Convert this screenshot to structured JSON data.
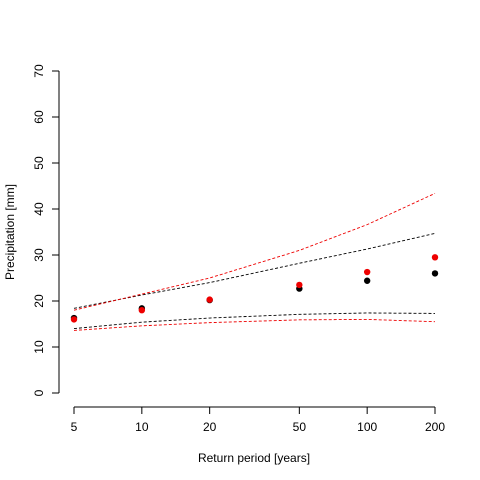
{
  "chart_data": {
    "type": "scatter",
    "title": "",
    "xlabel": "Return period [years]",
    "ylabel": "Precipitation [mm]",
    "x_scale": "log",
    "xlim": [
      5,
      200
    ],
    "ylim": [
      0,
      70
    ],
    "x_ticks": [
      5,
      10,
      20,
      50,
      100,
      200
    ],
    "x_tick_labels": [
      "5",
      "10",
      "20",
      "50",
      "100",
      "200"
    ],
    "y_ticks": [
      0,
      10,
      20,
      30,
      40,
      50,
      60,
      70
    ],
    "y_tick_labels": [
      "0",
      "10",
      "20",
      "30",
      "40",
      "50",
      "60",
      "70"
    ],
    "grid": false,
    "x": [
      5,
      10,
      20,
      50,
      100,
      200
    ],
    "series": [
      {
        "name": "black estimates",
        "kind": "points",
        "color": "#000000",
        "values": [
          16.3,
          18.4,
          20.2,
          22.7,
          24.4,
          26.0
        ]
      },
      {
        "name": "red estimates",
        "kind": "points",
        "color": "#ee0000",
        "values": [
          16.0,
          18.0,
          20.3,
          23.5,
          26.3,
          29.5
        ]
      },
      {
        "name": "black upper bound",
        "kind": "dashed-line",
        "color": "#000000",
        "values": [
          18.4,
          21.3,
          24.0,
          28.2,
          31.3,
          34.7
        ]
      },
      {
        "name": "black lower bound",
        "kind": "dashed-line",
        "color": "#000000",
        "values": [
          14.0,
          15.4,
          16.3,
          17.1,
          17.4,
          17.3
        ]
      },
      {
        "name": "red upper bound",
        "kind": "dashed-line",
        "color": "#ee0000",
        "values": [
          18.0,
          21.5,
          25.0,
          31.0,
          36.6,
          43.4
        ]
      },
      {
        "name": "red lower bound",
        "kind": "dashed-line",
        "color": "#ee0000",
        "values": [
          13.6,
          14.6,
          15.3,
          15.9,
          16.0,
          15.5
        ]
      }
    ]
  }
}
